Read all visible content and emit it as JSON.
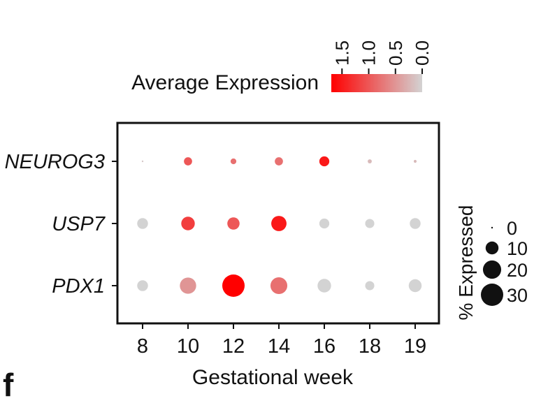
{
  "chart_data": {
    "type": "dotplot",
    "xlabel": "Gestational week",
    "categories": [
      "8",
      "10",
      "12",
      "14",
      "16",
      "18",
      "19"
    ],
    "genes": [
      "NEUROG3",
      "USP7",
      "PDX1"
    ],
    "color_legend": {
      "title": "Average Expression",
      "ticks": [
        "1.5",
        "1.0",
        "0.5",
        "0.0"
      ],
      "range": [
        0.0,
        1.7
      ],
      "low_color": "#d3d3d3",
      "high_color": "#ff0000"
    },
    "size_legend": {
      "title": "% Expressed",
      "ticks": [
        "0",
        "10",
        "20",
        "30"
      ],
      "values": [
        0,
        10,
        20,
        30
      ]
    },
    "series": [
      {
        "name": "NEUROG3",
        "pct_expressed": [
          0,
          4,
          2,
          4,
          6,
          1,
          0.5
        ],
        "avg_expression": [
          0.1,
          1.0,
          0.8,
          0.8,
          1.5,
          0.2,
          0.2
        ]
      },
      {
        "name": "USP7",
        "pct_expressed": [
          7,
          11,
          9,
          14,
          6,
          5,
          7
        ],
        "avg_expression": [
          0.0,
          1.2,
          1.0,
          1.5,
          0.0,
          0.0,
          0.0
        ]
      },
      {
        "name": "PDX1",
        "pct_expressed": [
          7,
          16,
          30,
          17,
          11,
          5,
          10
        ],
        "avg_expression": [
          0.0,
          0.5,
          1.7,
          0.8,
          0.0,
          0.0,
          0.0
        ]
      }
    ]
  },
  "panel_label": "f"
}
